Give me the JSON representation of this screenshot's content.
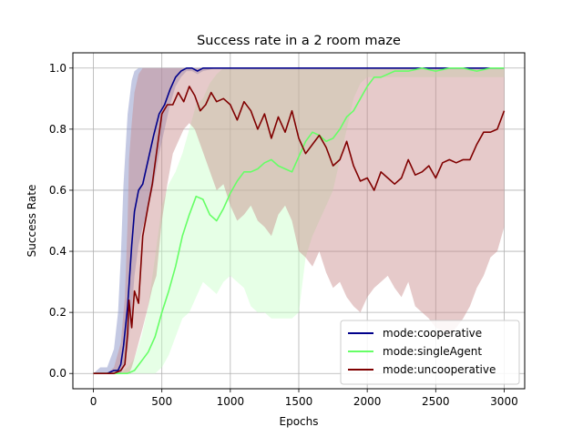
{
  "chart_data": {
    "type": "line",
    "title": "Success rate in a 2 room maze",
    "xlabel": "Epochs",
    "ylabel": "Success Rate",
    "xlim": [
      -150,
      3150
    ],
    "ylim": [
      -0.05,
      1.05
    ],
    "xticks": [
      0,
      500,
      1000,
      1500,
      2000,
      2500,
      3000
    ],
    "yticks": [
      0.0,
      0.2,
      0.4,
      0.6,
      0.8,
      1.0
    ],
    "xtick_labels": [
      "0",
      "500",
      "1000",
      "1500",
      "2000",
      "2500",
      "3000"
    ],
    "ytick_labels": [
      "0.0",
      "0.2",
      "0.4",
      "0.6",
      "0.8",
      "1.0"
    ],
    "grid": true,
    "legend_position": "lower-right",
    "series": [
      {
        "name": "mode:cooperative",
        "color": "#00008b",
        "band_color": "#8a94c8",
        "band_opacity": 0.5,
        "x": [
          0,
          50,
          100,
          150,
          180,
          200,
          220,
          250,
          280,
          300,
          330,
          360,
          400,
          440,
          480,
          520,
          560,
          600,
          640,
          680,
          720,
          760,
          800,
          900,
          1000,
          1500,
          2000,
          2500,
          3000
        ],
        "y": [
          0,
          0,
          0,
          0.01,
          0.01,
          0.03,
          0.09,
          0.22,
          0.42,
          0.53,
          0.6,
          0.62,
          0.7,
          0.78,
          0.85,
          0.88,
          0.93,
          0.97,
          0.99,
          1.0,
          1.0,
          0.99,
          1.0,
          1.0,
          1.0,
          1.0,
          1.0,
          1.0,
          1.0
        ],
        "lower": [
          0,
          0,
          0,
          0,
          0,
          0.0,
          0.02,
          0.08,
          0.2,
          0.32,
          0.42,
          0.48,
          0.54,
          0.62,
          0.72,
          0.8,
          0.88,
          0.94,
          0.97,
          0.99,
          0.99,
          0.98,
          0.99,
          1.0,
          1.0,
          1.0,
          1.0,
          1.0,
          1.0
        ],
        "upper": [
          0,
          0.02,
          0.02,
          0.08,
          0.2,
          0.38,
          0.62,
          0.85,
          0.96,
          0.99,
          1.0,
          1.0,
          1.0,
          1.0,
          1.0,
          1.0,
          1.0,
          1.0,
          1.0,
          1.0,
          1.0,
          1.0,
          1.0,
          1.0,
          1.0,
          1.0,
          1.0,
          1.0,
          1.0
        ]
      },
      {
        "name": "mode:singleAgent",
        "color": "#66ff66",
        "band_color": "#c8ffc8",
        "band_opacity": 0.45,
        "x": [
          0,
          100,
          200,
          250,
          300,
          350,
          400,
          450,
          500,
          550,
          600,
          650,
          700,
          750,
          800,
          850,
          900,
          950,
          1000,
          1050,
          1100,
          1150,
          1200,
          1250,
          1300,
          1350,
          1400,
          1450,
          1500,
          1550,
          1600,
          1650,
          1700,
          1750,
          1800,
          1850,
          1900,
          1950,
          2000,
          2050,
          2100,
          2200,
          2300,
          2400,
          2500,
          2600,
          2700,
          2800,
          2900,
          3000
        ],
        "y": [
          0,
          0,
          0,
          0.0,
          0.01,
          0.04,
          0.07,
          0.12,
          0.2,
          0.27,
          0.35,
          0.45,
          0.52,
          0.58,
          0.57,
          0.52,
          0.5,
          0.54,
          0.59,
          0.63,
          0.66,
          0.66,
          0.67,
          0.69,
          0.7,
          0.68,
          0.67,
          0.66,
          0.71,
          0.76,
          0.79,
          0.78,
          0.76,
          0.77,
          0.8,
          0.84,
          0.86,
          0.9,
          0.94,
          0.97,
          0.97,
          0.99,
          0.99,
          1.0,
          0.99,
          1.0,
          1.0,
          0.99,
          1.0,
          1.0
        ],
        "lower": [
          0,
          0,
          0,
          0,
          0,
          0,
          0,
          0,
          0.02,
          0.06,
          0.12,
          0.18,
          0.2,
          0.25,
          0.3,
          0.28,
          0.26,
          0.3,
          0.32,
          0.3,
          0.28,
          0.22,
          0.2,
          0.2,
          0.18,
          0.18,
          0.18,
          0.18,
          0.2,
          0.38,
          0.45,
          0.5,
          0.55,
          0.6,
          0.7,
          0.8,
          0.9,
          0.95,
          0.97,
          0.97,
          0.97,
          0.97,
          0.97,
          0.97,
          0.97,
          0.97,
          0.97,
          0.97,
          0.97,
          0.97
        ],
        "upper": [
          0,
          0,
          0,
          0.02,
          0.05,
          0.12,
          0.22,
          0.38,
          0.55,
          0.62,
          0.66,
          0.72,
          0.8,
          0.88,
          0.9,
          0.95,
          0.98,
          1.0,
          1.0,
          1.0,
          1.0,
          1.0,
          1.0,
          1.0,
          1.0,
          1.0,
          1.0,
          1.0,
          1.0,
          1.0,
          1.0,
          1.0,
          1.0,
          1.0,
          1.0,
          1.0,
          1.0,
          1.0,
          1.0,
          1.0,
          1.0,
          1.0,
          1.0,
          1.0,
          1.0,
          1.0,
          1.0,
          1.0,
          1.0,
          1.0
        ]
      },
      {
        "name": "mode:uncooperative",
        "color": "#800000",
        "band_color": "#c88a8a",
        "band_opacity": 0.45,
        "x": [
          0,
          100,
          150,
          200,
          230,
          250,
          260,
          280,
          300,
          330,
          360,
          400,
          430,
          460,
          500,
          540,
          580,
          620,
          660,
          700,
          740,
          780,
          820,
          860,
          900,
          950,
          1000,
          1050,
          1100,
          1150,
          1200,
          1250,
          1300,
          1350,
          1400,
          1450,
          1500,
          1550,
          1600,
          1650,
          1700,
          1750,
          1800,
          1850,
          1900,
          1950,
          2000,
          2050,
          2100,
          2150,
          2200,
          2250,
          2300,
          2350,
          2400,
          2450,
          2500,
          2550,
          2600,
          2650,
          2700,
          2750,
          2800,
          2850,
          2900,
          2950,
          3000
        ],
        "y": [
          0,
          0,
          0,
          0.01,
          0.03,
          0.13,
          0.24,
          0.15,
          0.27,
          0.23,
          0.45,
          0.55,
          0.62,
          0.72,
          0.85,
          0.88,
          0.88,
          0.92,
          0.89,
          0.94,
          0.91,
          0.86,
          0.88,
          0.92,
          0.89,
          0.9,
          0.88,
          0.83,
          0.89,
          0.86,
          0.8,
          0.85,
          0.77,
          0.84,
          0.79,
          0.86,
          0.77,
          0.72,
          0.75,
          0.78,
          0.74,
          0.68,
          0.7,
          0.76,
          0.68,
          0.63,
          0.64,
          0.6,
          0.66,
          0.64,
          0.62,
          0.64,
          0.7,
          0.65,
          0.66,
          0.68,
          0.64,
          0.69,
          0.7,
          0.69,
          0.7,
          0.7,
          0.75,
          0.79,
          0.79,
          0.8,
          0.86
        ],
        "lower": [
          0,
          0,
          0,
          0,
          0,
          0,
          0.0,
          0.02,
          0.05,
          0.1,
          0.15,
          0.22,
          0.28,
          0.32,
          0.5,
          0.62,
          0.72,
          0.76,
          0.8,
          0.82,
          0.8,
          0.75,
          0.7,
          0.65,
          0.6,
          0.62,
          0.55,
          0.5,
          0.52,
          0.55,
          0.5,
          0.48,
          0.45,
          0.52,
          0.55,
          0.5,
          0.4,
          0.38,
          0.35,
          0.4,
          0.33,
          0.28,
          0.3,
          0.25,
          0.22,
          0.2,
          0.25,
          0.28,
          0.3,
          0.32,
          0.28,
          0.25,
          0.3,
          0.22,
          0.2,
          0.18,
          0.15,
          0.14,
          0.13,
          0.15,
          0.18,
          0.22,
          0.28,
          0.32,
          0.38,
          0.4,
          0.48
        ],
        "upper": [
          0,
          0,
          0.02,
          0.1,
          0.25,
          0.5,
          0.7,
          0.82,
          0.92,
          0.98,
          1.0,
          1.0,
          1.0,
          1.0,
          1.0,
          1.0,
          1.0,
          1.0,
          1.0,
          1.0,
          1.0,
          1.0,
          1.0,
          1.0,
          1.0,
          1.0,
          1.0,
          1.0,
          1.0,
          1.0,
          1.0,
          1.0,
          1.0,
          1.0,
          1.0,
          1.0,
          1.0,
          1.0,
          1.0,
          1.0,
          1.0,
          1.0,
          1.0,
          1.0,
          1.0,
          1.0,
          1.0,
          1.0,
          1.0,
          1.0,
          1.0,
          1.0,
          1.0,
          1.0,
          1.0,
          1.0,
          1.0,
          1.0,
          1.0,
          1.0,
          1.0,
          1.0,
          1.0,
          1.0,
          1.0,
          1.0,
          1.0
        ]
      }
    ]
  }
}
